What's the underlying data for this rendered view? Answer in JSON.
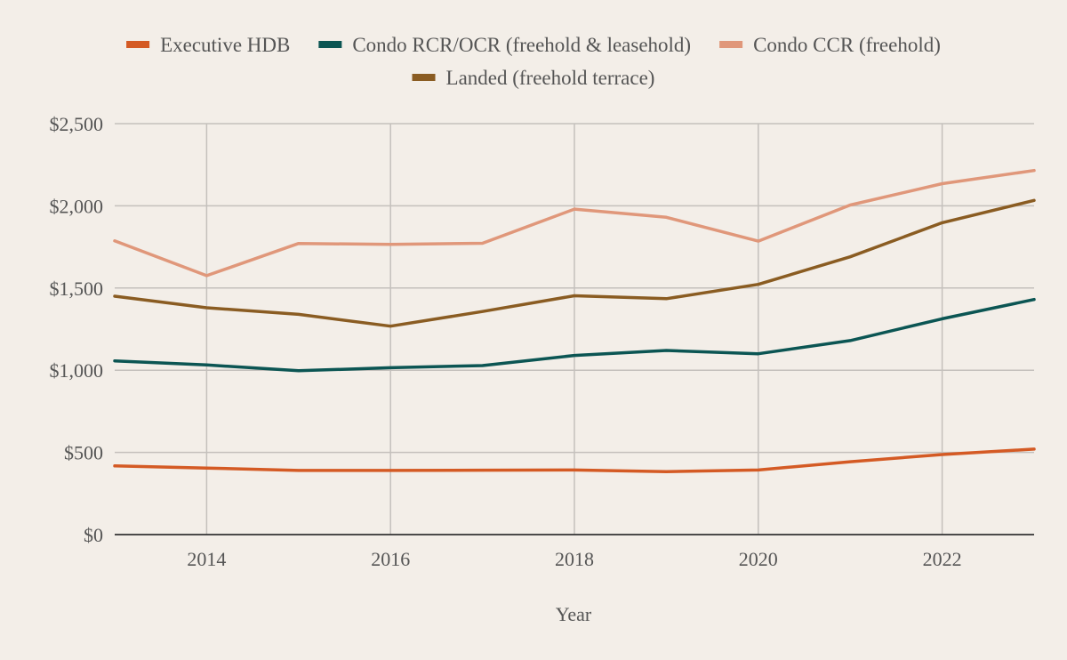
{
  "chart_data": {
    "type": "line",
    "title": "",
    "xlabel": "Year",
    "ylabel": "",
    "x": [
      2013,
      2014,
      2015,
      2016,
      2017,
      2018,
      2019,
      2020,
      2021,
      2022,
      2023
    ],
    "xlim": [
      2013,
      2023
    ],
    "x_ticks": [
      2014,
      2016,
      2018,
      2020,
      2022
    ],
    "x_tick_labels": [
      "2014",
      "2016",
      "2018",
      "2020",
      "2022"
    ],
    "ylim": [
      0,
      2500
    ],
    "y_ticks": [
      0,
      500,
      1000,
      1500,
      2000,
      2500
    ],
    "y_tick_labels": [
      "$0",
      "$500",
      "$1,000",
      "$1,500",
      "$2,000",
      "$2,500"
    ],
    "grid": true,
    "legend_position": "top-center",
    "series": [
      {
        "name": "Executive HDB",
        "color": "#d45a24",
        "values": [
          418,
          405,
          390,
          390,
          392,
          393,
          383,
          393,
          443,
          487,
          520
        ]
      },
      {
        "name": "Condo RCR/OCR (freehold & leasehold)",
        "color": "#0b5553",
        "values": [
          1057,
          1032,
          997,
          1015,
          1028,
          1090,
          1120,
          1100,
          1180,
          1313,
          1430
        ]
      },
      {
        "name": "Condo CCR (freehold)",
        "color": "#e0977a",
        "values": [
          1787,
          1575,
          1771,
          1765,
          1772,
          1980,
          1930,
          1785,
          2005,
          2135,
          2215
        ]
      },
      {
        "name": "Landed (freehold terrace)",
        "color": "#8a5c22",
        "values": [
          1450,
          1380,
          1340,
          1268,
          1357,
          1453,
          1435,
          1522,
          1690,
          1897,
          2033
        ]
      }
    ]
  }
}
